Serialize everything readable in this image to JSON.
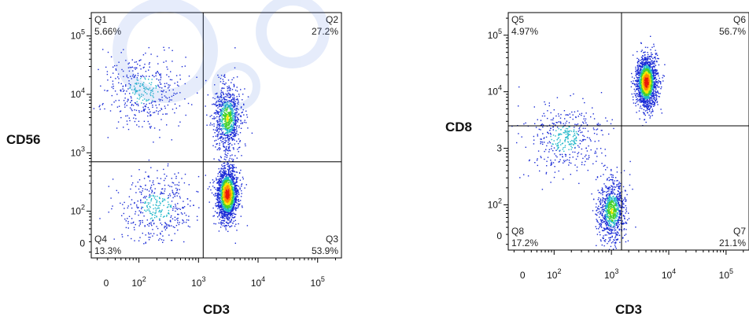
{
  "chart_data": [
    {
      "type": "scatter",
      "title": "",
      "xlabel": "CD3",
      "ylabel": "CD56",
      "scale": "biexponential (log)",
      "x_tick_labels": [
        "0",
        "10^2",
        "10^3",
        "10^4",
        "10^5"
      ],
      "y_tick_labels": [
        "0",
        "10^2",
        "10^3",
        "10^4",
        "10^5"
      ],
      "quadrant_gate": {
        "x": 1200,
        "y": 700
      },
      "quadrants": [
        {
          "name": "Q1",
          "percent": "5.66%",
          "position": "top-left"
        },
        {
          "name": "Q2",
          "percent": "27.2%",
          "position": "top-right"
        },
        {
          "name": "Q3",
          "percent": "53.9%",
          "position": "bottom-right"
        },
        {
          "name": "Q4",
          "percent": "13.3%",
          "position": "bottom-left"
        }
      ],
      "populations": [
        {
          "x_center": 3000,
          "y_center": 200,
          "density": "high"
        },
        {
          "x_center": 3000,
          "y_center": 4000,
          "density": "medium"
        },
        {
          "x_center": 120,
          "y_center": 12000,
          "density": "low"
        },
        {
          "x_center": 200,
          "y_center": 120,
          "density": "low"
        }
      ]
    },
    {
      "type": "scatter",
      "title": "",
      "xlabel": "CD3",
      "ylabel": "CD8",
      "scale": "biexponential (log)",
      "x_tick_labels": [
        "0",
        "10^2",
        "10^3",
        "10^4",
        "10^5"
      ],
      "y_tick_labels": [
        "0",
        "10^2",
        "3",
        "10^4",
        "10^5"
      ],
      "quadrant_gate": {
        "x": 1500,
        "y": 2500
      },
      "quadrants": [
        {
          "name": "Q5",
          "percent": "4.97%",
          "position": "top-left"
        },
        {
          "name": "Q6",
          "percent": "56.7%",
          "position": "top-right"
        },
        {
          "name": "Q7",
          "percent": "21.1%",
          "position": "bottom-right"
        },
        {
          "name": "Q8",
          "percent": "17.2%",
          "position": "bottom-left"
        }
      ],
      "populations": [
        {
          "x_center": 4000,
          "y_center": 15000,
          "density": "high"
        },
        {
          "x_center": 150,
          "y_center": 1500,
          "density": "low"
        },
        {
          "x_center": 1000,
          "y_center": 80,
          "density": "medium"
        }
      ]
    }
  ]
}
